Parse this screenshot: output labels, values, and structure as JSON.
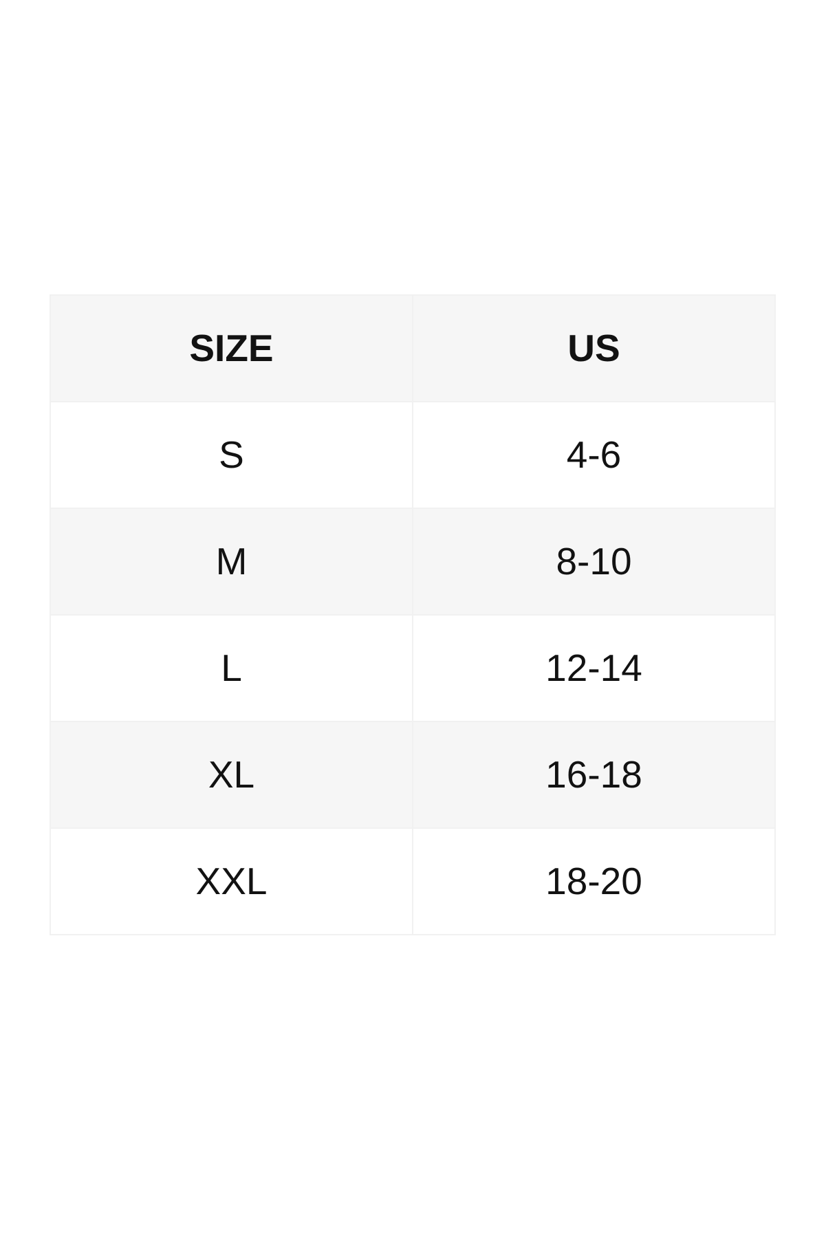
{
  "size_chart": {
    "headers": [
      "SIZE",
      "US"
    ],
    "rows": [
      {
        "size": "S",
        "us": "4-6"
      },
      {
        "size": "M",
        "us": "8-10"
      },
      {
        "size": "L",
        "us": "12-14"
      },
      {
        "size": "XL",
        "us": "16-18"
      },
      {
        "size": "XXL",
        "us": "18-20"
      }
    ]
  },
  "colors": {
    "page_background": "#ffffff",
    "row_alt_color": "#f6f6f6",
    "border_color": "#f1f1f1",
    "text_color": "#121212"
  }
}
